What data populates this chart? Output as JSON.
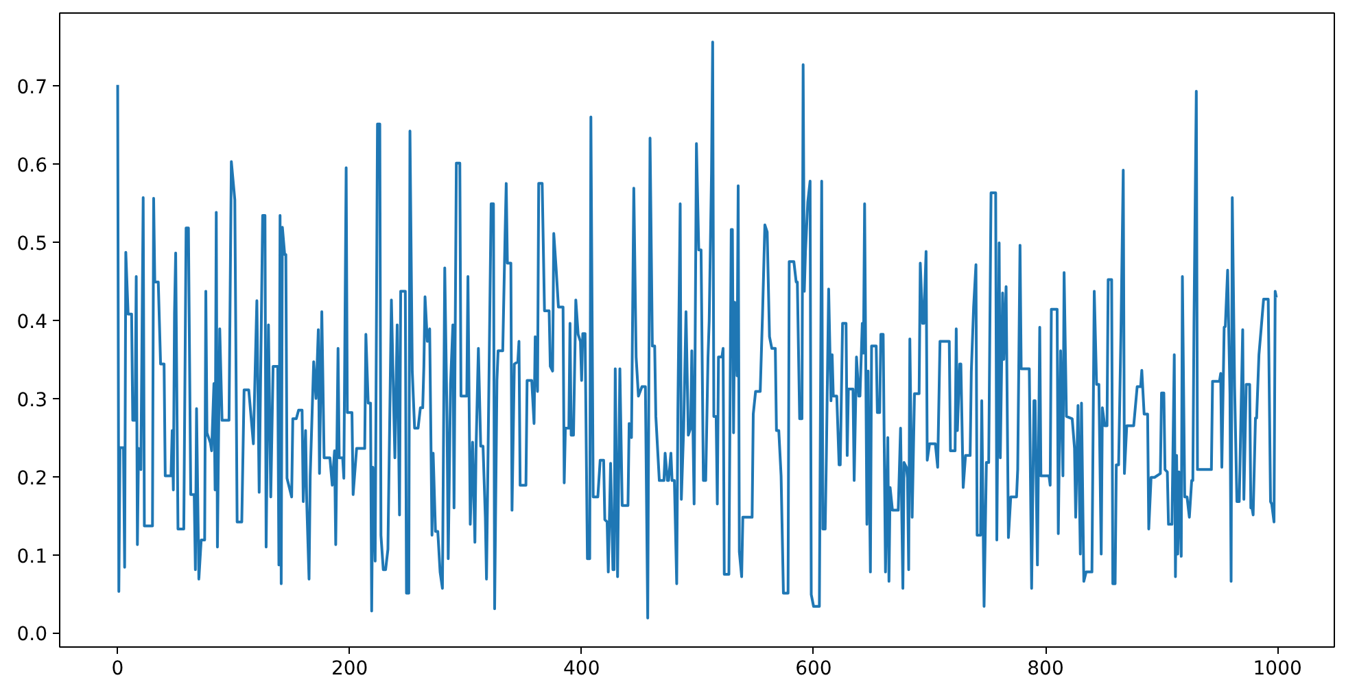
{
  "chart_data": {
    "type": "line",
    "grid": false,
    "xlim": [
      -50,
      1049
    ],
    "ylim": [
      -0.018,
      0.793
    ],
    "xticks": [
      0,
      200,
      400,
      600,
      800,
      1000
    ],
    "yticks": [
      {
        "value": 0,
        "label": "0.0"
      },
      0.1,
      0.2,
      0.3,
      0.4,
      0.5,
      0.6,
      0.7
    ],
    "x": [
      0,
      1,
      2,
      5,
      6,
      7,
      9,
      12,
      13,
      15,
      16,
      17,
      18,
      20,
      22,
      23,
      30,
      31,
      32,
      35,
      37,
      40,
      41,
      46,
      47,
      48,
      49,
      50,
      52,
      57,
      59,
      61,
      63,
      66,
      67,
      68,
      70,
      72,
      75,
      76,
      77,
      80,
      81,
      83,
      84,
      85,
      86,
      88,
      90,
      96,
      98,
      101,
      103,
      107,
      109,
      113,
      114,
      117,
      120,
      122,
      125,
      127,
      128,
      130,
      132,
      134,
      138,
      139,
      140,
      141,
      142,
      144,
      145,
      146,
      150,
      151,
      154,
      156,
      159,
      160,
      162,
      163,
      165,
      166,
      169,
      171,
      173,
      174,
      176,
      178,
      183,
      185,
      187,
      188,
      190,
      191,
      194,
      195,
      197,
      198,
      202,
      203,
      206,
      213,
      214,
      216,
      218,
      219,
      220,
      222,
      224,
      226,
      227,
      229,
      231,
      233,
      236,
      239,
      241,
      243,
      244,
      248,
      249,
      251,
      252,
      254,
      256,
      259,
      261,
      263,
      264,
      265,
      267,
      269,
      271,
      272,
      274,
      276,
      278,
      280,
      282,
      284,
      285,
      287,
      289,
      290,
      292,
      295,
      296,
      301,
      302,
      304,
      306,
      308,
      309,
      311,
      313,
      315,
      317,
      318,
      322,
      324,
      325,
      327,
      328,
      332,
      334,
      335,
      336,
      339,
      340,
      342,
      345,
      346,
      347,
      352,
      353,
      357,
      359,
      360,
      362,
      363,
      366,
      368,
      372,
      373,
      375,
      376,
      378,
      380,
      384,
      385,
      386,
      389,
      390,
      391,
      393,
      395,
      397,
      399,
      400,
      401,
      403,
      405,
      407,
      408,
      410,
      414,
      416,
      419,
      420,
      422,
      423,
      425,
      427,
      428,
      429,
      431,
      433,
      435,
      440,
      441,
      443,
      445,
      447,
      449,
      452,
      455,
      457,
      459,
      461,
      463,
      464,
      467,
      471,
      472,
      474,
      475,
      477,
      478,
      480,
      482,
      483,
      485,
      486,
      488,
      490,
      492,
      494,
      495,
      497,
      499,
      501,
      503,
      505,
      507,
      509,
      510,
      512,
      513,
      514,
      516,
      517,
      518,
      521,
      522,
      523,
      527,
      529,
      530,
      531,
      532,
      534,
      535,
      536,
      538,
      539,
      547,
      548,
      550,
      554,
      556,
      558,
      560,
      562,
      564,
      567,
      568,
      570,
      572,
      574,
      578,
      579,
      583,
      585,
      586,
      588,
      590,
      591,
      592,
      593,
      595,
      597,
      598,
      600,
      605,
      607,
      608,
      610,
      611,
      613,
      615,
      616,
      617,
      620,
      622,
      623,
      625,
      628,
      629,
      630,
      634,
      635,
      637,
      639,
      640,
      642,
      643,
      644,
      646,
      647,
      649,
      650,
      654,
      655,
      657,
      658,
      660,
      662,
      664,
      665,
      666,
      668,
      673,
      675,
      677,
      678,
      680,
      681,
      682,
      683,
      685,
      687,
      691,
      692,
      694,
      695,
      697,
      698,
      700,
      705,
      707,
      709,
      717,
      718,
      722,
      723,
      724,
      726,
      727,
      729,
      731,
      735,
      736,
      738,
      740,
      741,
      744,
      745,
      747,
      749,
      751,
      753,
      757,
      758,
      760,
      761,
      763,
      764,
      766,
      768,
      770,
      775,
      776,
      778,
      779,
      786,
      788,
      790,
      791,
      793,
      795,
      796,
      803,
      804,
      805,
      810,
      811,
      813,
      815,
      816,
      818,
      823,
      825,
      826,
      828,
      830,
      831,
      833,
      835,
      840,
      842,
      844,
      846,
      848,
      849,
      851,
      853,
      854,
      857,
      858,
      860,
      861,
      863,
      865,
      867,
      868,
      870,
      876,
      879,
      882,
      883,
      885,
      888,
      889,
      891,
      894,
      899,
      900,
      902,
      903,
      905,
      906,
      909,
      911,
      912,
      913,
      914,
      915,
      917,
      918,
      920,
      922,
      924,
      926,
      927,
      928,
      930,
      931,
      943,
      944,
      950,
      951,
      952,
      954,
      955,
      957,
      959,
      960,
      961,
      963,
      965,
      967,
      970,
      971,
      973,
      976,
      977,
      978,
      979,
      981,
      982,
      984,
      986,
      988,
      992,
      994,
      995,
      997,
      998,
      999
    ],
    "series": [
      {
        "color": "#1f77b4",
        "values": [
          0.701,
          0.053,
          0.237,
          0.237,
          0.084,
          0.487,
          0.408,
          0.408,
          0.272,
          0.272,
          0.456,
          0.113,
          0.236,
          0.209,
          0.557,
          0.137,
          0.137,
          0.556,
          0.449,
          0.449,
          0.344,
          0.344,
          0.201,
          0.201,
          0.259,
          0.183,
          0.408,
          0.486,
          0.133,
          0.133,
          0.518,
          0.518,
          0.177,
          0.177,
          0.081,
          0.287,
          0.069,
          0.119,
          0.119,
          0.437,
          0.256,
          0.243,
          0.233,
          0.319,
          0.183,
          0.538,
          0.11,
          0.389,
          0.272,
          0.272,
          0.603,
          0.554,
          0.142,
          0.142,
          0.311,
          0.311,
          0.294,
          0.242,
          0.425,
          0.18,
          0.534,
          0.534,
          0.11,
          0.394,
          0.174,
          0.341,
          0.341,
          0.087,
          0.534,
          0.063,
          0.519,
          0.484,
          0.484,
          0.198,
          0.174,
          0.274,
          0.274,
          0.285,
          0.285,
          0.168,
          0.259,
          0.168,
          0.069,
          0.201,
          0.347,
          0.3,
          0.388,
          0.204,
          0.411,
          0.224,
          0.224,
          0.189,
          0.233,
          0.113,
          0.364,
          0.224,
          0.224,
          0.198,
          0.595,
          0.282,
          0.282,
          0.177,
          0.236,
          0.236,
          0.382,
          0.294,
          0.294,
          0.028,
          0.212,
          0.092,
          0.651,
          0.651,
          0.125,
          0.081,
          0.081,
          0.107,
          0.426,
          0.224,
          0.394,
          0.151,
          0.437,
          0.437,
          0.051,
          0.051,
          0.642,
          0.335,
          0.262,
          0.262,
          0.288,
          0.288,
          0.341,
          0.43,
          0.373,
          0.389,
          0.125,
          0.23,
          0.13,
          0.13,
          0.078,
          0.057,
          0.467,
          0.268,
          0.095,
          0.318,
          0.394,
          0.16,
          0.601,
          0.601,
          0.303,
          0.303,
          0.456,
          0.139,
          0.244,
          0.116,
          0.236,
          0.364,
          0.239,
          0.239,
          0.148,
          0.069,
          0.549,
          0.549,
          0.031,
          0.323,
          0.361,
          0.361,
          0.508,
          0.575,
          0.473,
          0.473,
          0.157,
          0.344,
          0.347,
          0.373,
          0.189,
          0.189,
          0.323,
          0.323,
          0.268,
          0.379,
          0.309,
          0.575,
          0.575,
          0.412,
          0.412,
          0.341,
          0.335,
          0.511,
          0.467,
          0.417,
          0.417,
          0.192,
          0.262,
          0.262,
          0.396,
          0.253,
          0.253,
          0.426,
          0.382,
          0.373,
          0.323,
          0.383,
          0.383,
          0.095,
          0.095,
          0.66,
          0.174,
          0.174,
          0.221,
          0.221,
          0.145,
          0.142,
          0.078,
          0.217,
          0.081,
          0.081,
          0.338,
          0.072,
          0.338,
          0.163,
          0.163,
          0.268,
          0.25,
          0.569,
          0.353,
          0.303,
          0.315,
          0.315,
          0.019,
          0.633,
          0.367,
          0.367,
          0.277,
          0.195,
          0.195,
          0.23,
          0.195,
          0.195,
          0.23,
          0.195,
          0.195,
          0.063,
          0.285,
          0.549,
          0.171,
          0.262,
          0.411,
          0.253,
          0.262,
          0.361,
          0.165,
          0.626,
          0.49,
          0.49,
          0.195,
          0.195,
          0.353,
          0.399,
          0.587,
          0.756,
          0.277,
          0.277,
          0.165,
          0.353,
          0.353,
          0.364,
          0.075,
          0.075,
          0.516,
          0.516,
          0.256,
          0.423,
          0.329,
          0.572,
          0.104,
          0.072,
          0.148,
          0.148,
          0.28,
          0.309,
          0.309,
          0.408,
          0.522,
          0.513,
          0.379,
          0.364,
          0.364,
          0.259,
          0.259,
          0.201,
          0.051,
          0.051,
          0.475,
          0.475,
          0.449,
          0.449,
          0.274,
          0.274,
          0.727,
          0.437,
          0.487,
          0.551,
          0.578,
          0.049,
          0.034,
          0.034,
          0.578,
          0.133,
          0.133,
          0.224,
          0.44,
          0.297,
          0.356,
          0.303,
          0.303,
          0.215,
          0.215,
          0.396,
          0.396,
          0.227,
          0.312,
          0.312,
          0.195,
          0.353,
          0.303,
          0.303,
          0.396,
          0.358,
          0.549,
          0.139,
          0.335,
          0.078,
          0.367,
          0.367,
          0.282,
          0.282,
          0.382,
          0.382,
          0.078,
          0.25,
          0.066,
          0.186,
          0.157,
          0.157,
          0.262,
          0.057,
          0.218,
          0.212,
          0.198,
          0.081,
          0.376,
          0.148,
          0.306,
          0.306,
          0.473,
          0.396,
          0.396,
          0.488,
          0.221,
          0.242,
          0.242,
          0.212,
          0.373,
          0.373,
          0.233,
          0.233,
          0.389,
          0.259,
          0.344,
          0.344,
          0.186,
          0.227,
          0.227,
          0.334,
          0.417,
          0.471,
          0.125,
          0.125,
          0.297,
          0.034,
          0.218,
          0.218,
          0.563,
          0.563,
          0.119,
          0.499,
          0.224,
          0.435,
          0.35,
          0.443,
          0.122,
          0.174,
          0.174,
          0.209,
          0.496,
          0.338,
          0.338,
          0.057,
          0.297,
          0.297,
          0.087,
          0.391,
          0.201,
          0.201,
          0.189,
          0.414,
          0.414,
          0.127,
          0.361,
          0.201,
          0.461,
          0.277,
          0.274,
          0.236,
          0.148,
          0.291,
          0.101,
          0.294,
          0.066,
          0.078,
          0.078,
          0.437,
          0.318,
          0.318,
          0.101,
          0.288,
          0.265,
          0.265,
          0.452,
          0.452,
          0.063,
          0.063,
          0.215,
          0.215,
          0.382,
          0.592,
          0.204,
          0.265,
          0.265,
          0.315,
          0.315,
          0.336,
          0.28,
          0.28,
          0.133,
          0.199,
          0.199,
          0.204,
          0.307,
          0.307,
          0.209,
          0.206,
          0.139,
          0.139,
          0.356,
          0.072,
          0.227,
          0.101,
          0.206,
          0.098,
          0.456,
          0.174,
          0.174,
          0.148,
          0.195,
          0.195,
          0.399,
          0.693,
          0.209,
          0.209,
          0.322,
          0.322,
          0.332,
          0.212,
          0.391,
          0.392,
          0.464,
          0.306,
          0.066,
          0.557,
          0.315,
          0.168,
          0.168,
          0.388,
          0.171,
          0.318,
          0.318,
          0.16,
          0.16,
          0.151,
          0.275,
          0.275,
          0.356,
          0.391,
          0.427,
          0.427,
          0.168,
          0.165,
          0.142,
          0.437,
          0.429
        ]
      }
    ]
  }
}
